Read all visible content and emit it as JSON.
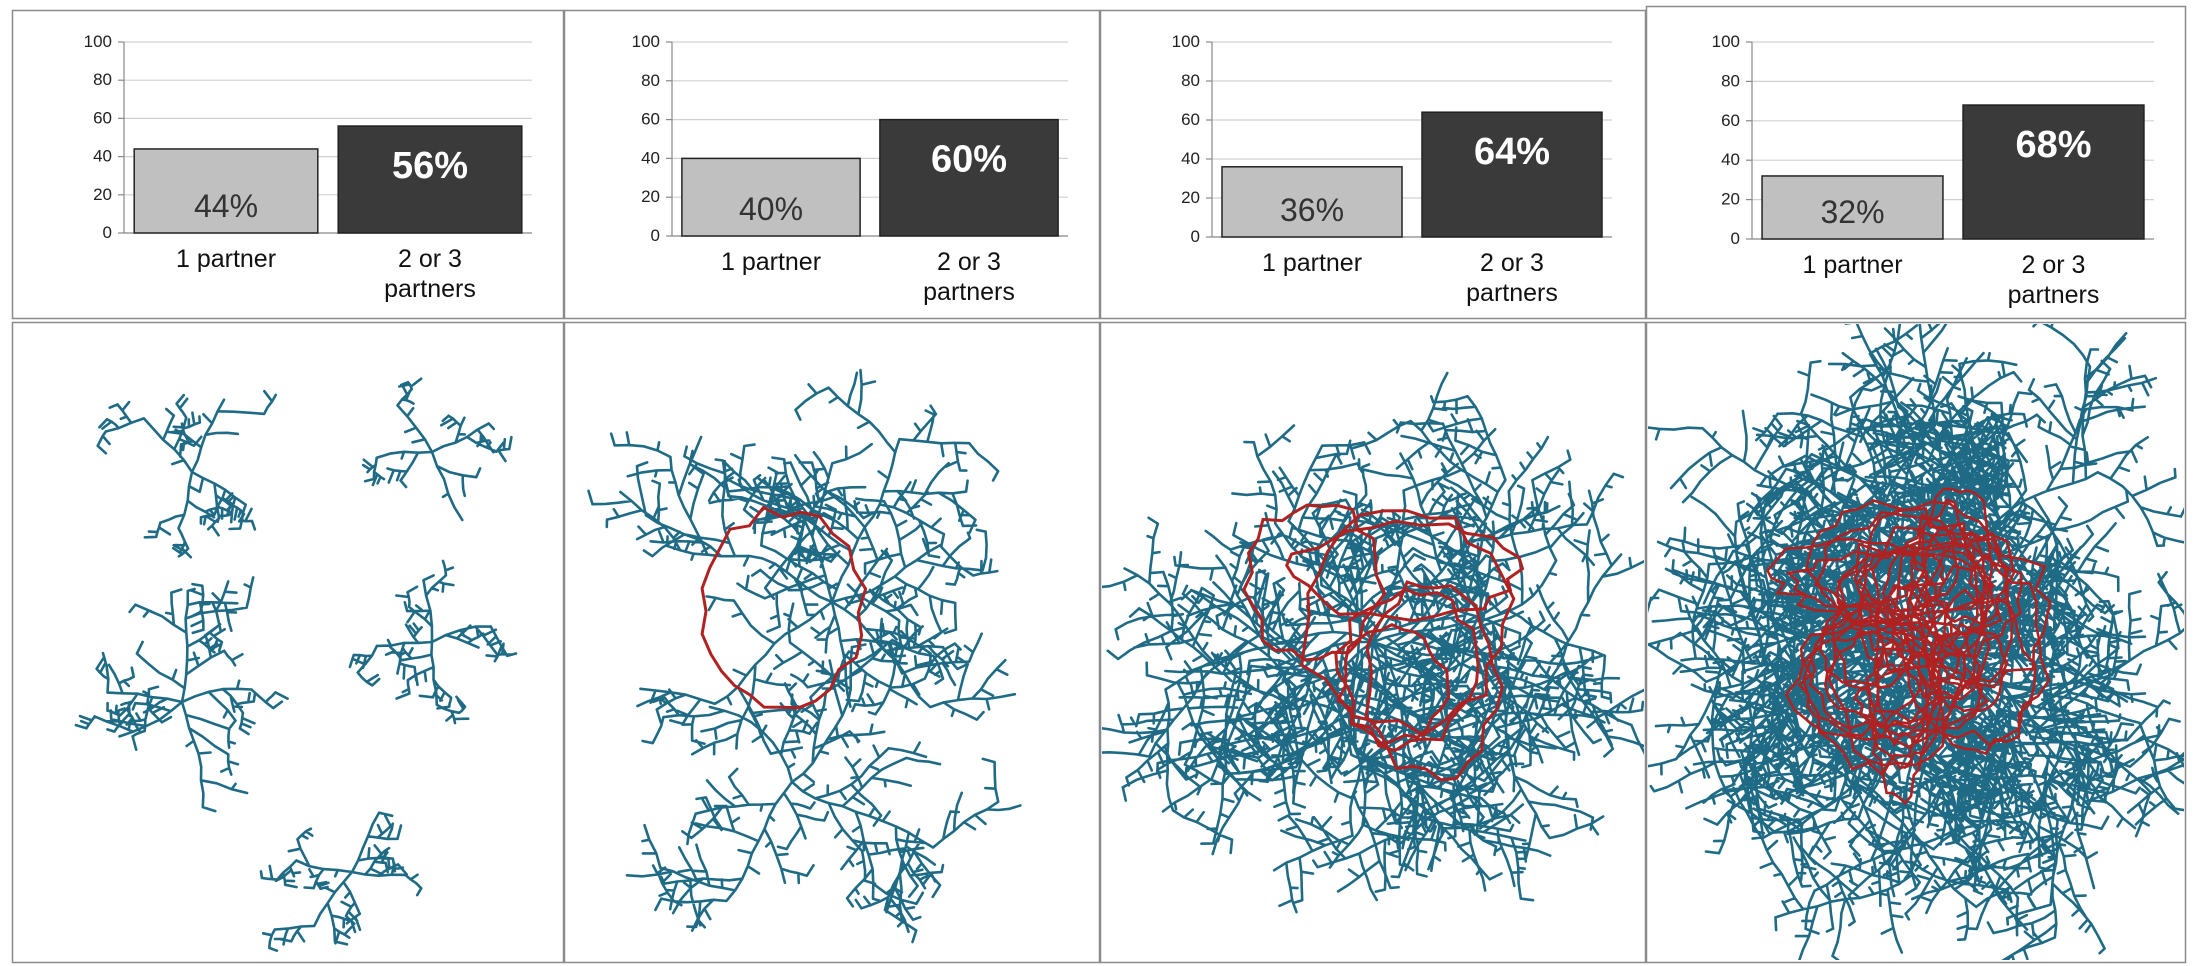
{
  "chart_data": [
    {
      "type": "bar",
      "categories": [
        "1 partner",
        "2 or 3\npartners"
      ],
      "values": [
        44,
        56
      ],
      "data_labels": [
        "44%",
        "56%"
      ],
      "ylim": [
        0,
        100
      ],
      "yticks": [
        "0",
        "20",
        "40",
        "60",
        "80",
        "100"
      ],
      "grid": true,
      "network": {
        "description_tag": "separate-trees",
        "concurrency_loops": 0
      }
    },
    {
      "type": "bar",
      "categories": [
        "1 partner",
        "2 or 3\npartners"
      ],
      "values": [
        40,
        60
      ],
      "data_labels": [
        "40%",
        "60%"
      ],
      "ylim": [
        0,
        100
      ],
      "yticks": [
        "0",
        "20",
        "40",
        "60",
        "80",
        "100"
      ],
      "grid": true,
      "network": {
        "description_tag": "single-tree-one-loop",
        "concurrency_loops": 1
      }
    },
    {
      "type": "bar",
      "categories": [
        "1 partner",
        "2 or 3\npartners"
      ],
      "values": [
        36,
        64
      ],
      "data_labels": [
        "36%",
        "64%"
      ],
      "ylim": [
        0,
        100
      ],
      "yticks": [
        "0",
        "20",
        "40",
        "60",
        "80",
        "100"
      ],
      "grid": true,
      "network": {
        "description_tag": "dense-tree-several-loops",
        "concurrency_loops": 6
      }
    },
    {
      "type": "bar",
      "categories": [
        "1 partner",
        "2 or 3\npartners"
      ],
      "values": [
        32,
        68
      ],
      "data_labels": [
        "32%",
        "68%"
      ],
      "ylim": [
        0,
        100
      ],
      "yticks": [
        "0",
        "20",
        "40",
        "60",
        "80",
        "100"
      ],
      "grid": true,
      "network": {
        "description_tag": "very-dense-many-loops",
        "concurrency_loops": 30
      }
    }
  ],
  "colors": {
    "bar_one_partner": "#c0c0c0",
    "bar_multi_partner": "#3a3a3a",
    "label_one_partner": "#333333",
    "label_multi_partner": "#ffffff",
    "tree": "#1f6b85",
    "loop": "#b02222",
    "grid": "#d0d0d0",
    "panel_border": "#8a8a8a"
  }
}
